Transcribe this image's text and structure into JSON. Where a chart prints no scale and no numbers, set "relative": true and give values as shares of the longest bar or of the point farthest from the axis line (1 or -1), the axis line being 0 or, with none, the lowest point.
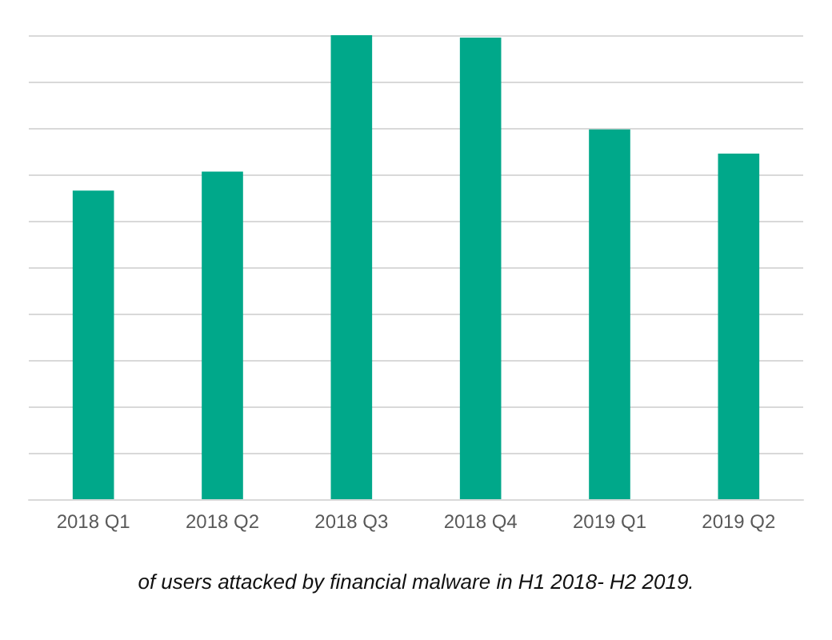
{
  "chart_data": {
    "type": "bar",
    "relative": true,
    "categories": [
      "2018 Q1",
      "2018 Q2",
      "2018 Q3",
      "2018 Q4",
      "2019 Q1",
      "2019 Q2"
    ],
    "values": [
      0.665,
      0.706,
      1,
      0.995,
      0.797,
      0.745
    ],
    "color": "#00a88a",
    "grid": "y",
    "annotations": [
      "of users attacked by financial malware in H1 2018- H2 2019."
    ]
  }
}
